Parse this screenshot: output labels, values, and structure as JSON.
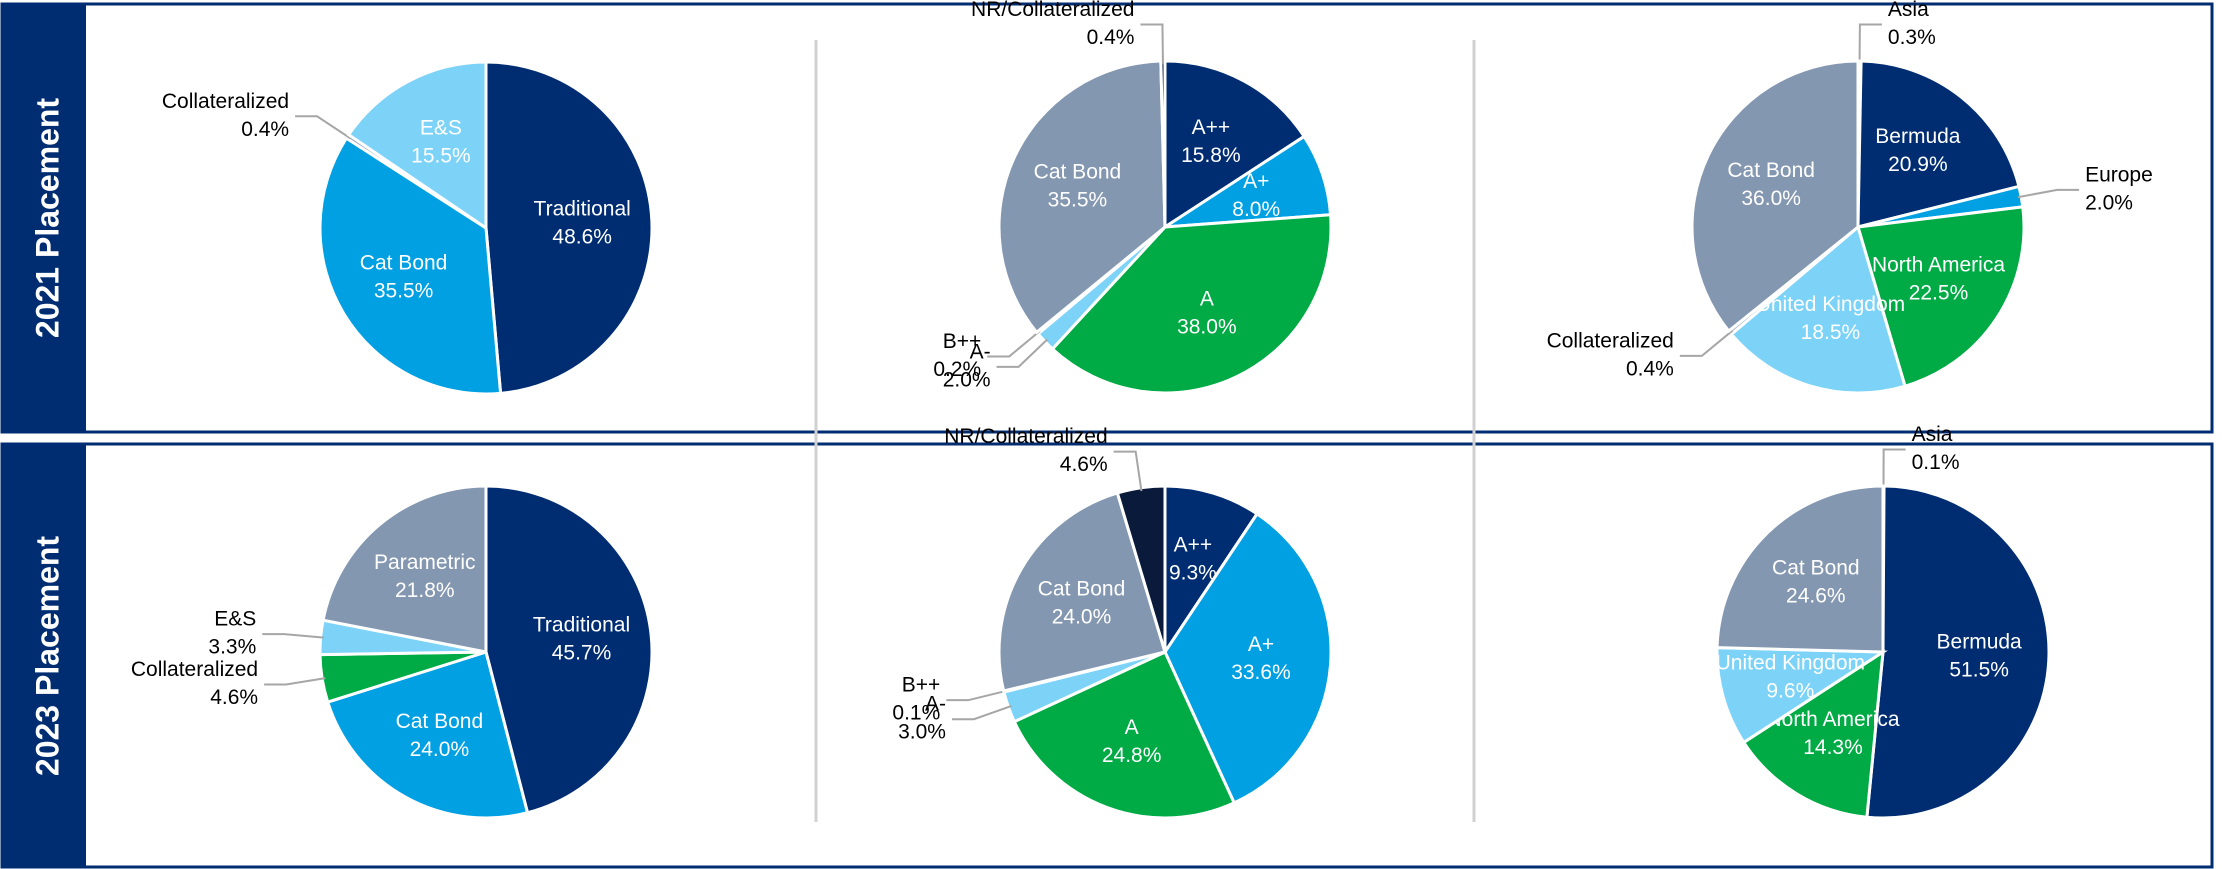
{
  "row_labels": [
    "2021 Placement",
    "2023 Placement"
  ],
  "chart_data": [
    {
      "type": "pie",
      "categories": [
        "Traditional",
        "Cat Bond",
        "Collateralized",
        "E&S"
      ],
      "values": [
        48.6,
        35.5,
        0.4,
        15.5
      ],
      "value_labels": [
        "48.6%",
        "35.5%",
        "0.4%",
        "15.5%"
      ],
      "colors": [
        "#002d72",
        "#00a0e3",
        "#8497b0",
        "#7dd3f7"
      ]
    },
    {
      "type": "pie",
      "categories": [
        "A++",
        "A+",
        "A",
        "A-",
        "B++",
        "Cat Bond",
        "NR/Collateralized"
      ],
      "values": [
        15.8,
        8.0,
        38.0,
        2.0,
        0.2,
        35.5,
        0.4
      ],
      "value_labels": [
        "15.8%",
        "8.0%",
        "38.0%",
        "2.0%",
        "0.2%",
        "35.5%",
        "0.4%"
      ],
      "colors": [
        "#002d72",
        "#00a0e3",
        "#00aa45",
        "#7dd3f7",
        "#b8d9ef",
        "#8497b0",
        "#0a1a3a"
      ]
    },
    {
      "type": "pie",
      "categories": [
        "Asia",
        "Bermuda",
        "Europe",
        "North America",
        "United Kingdom",
        "Collateralized",
        "Cat Bond"
      ],
      "values": [
        0.3,
        20.9,
        2.0,
        22.5,
        18.5,
        0.4,
        36.0
      ],
      "value_labels": [
        "0.3%",
        "20.9%",
        "2.0%",
        "22.5%",
        "18.5%",
        "0.4%",
        "36.0%"
      ],
      "colors": [
        "#0a1a3a",
        "#002d72",
        "#00a0e3",
        "#00aa45",
        "#7dd3f7",
        "#b0b8c8",
        "#8497b0"
      ]
    },
    {
      "type": "pie",
      "categories": [
        "Traditional",
        "Cat Bond",
        "Collateralized",
        "E&S",
        "Parametric"
      ],
      "values": [
        45.7,
        24.0,
        4.6,
        3.3,
        21.8
      ],
      "value_labels": [
        "45.7%",
        "24.0%",
        "4.6%",
        "3.3%",
        "21.8%"
      ],
      "colors": [
        "#002d72",
        "#00a0e3",
        "#00aa45",
        "#7dd3f7",
        "#8497b0"
      ]
    },
    {
      "type": "pie",
      "categories": [
        "A++",
        "A+",
        "A",
        "A-",
        "B++",
        "Cat Bond",
        "NR/Collateralized"
      ],
      "values": [
        9.3,
        33.6,
        24.8,
        3.0,
        0.1,
        24.0,
        4.6
      ],
      "value_labels": [
        "9.3%",
        "33.6%",
        "24.8%",
        "3.0%",
        "0.1%",
        "24.0%",
        "4.6%"
      ],
      "colors": [
        "#002d72",
        "#00a0e3",
        "#00aa45",
        "#7dd3f7",
        "#b8d9ef",
        "#8497b0",
        "#0a1a3a"
      ]
    },
    {
      "type": "pie",
      "categories": [
        "Asia",
        "Bermuda",
        "North America",
        "United Kingdom",
        "Cat Bond"
      ],
      "values": [
        0.1,
        51.5,
        14.3,
        9.6,
        24.6
      ],
      "value_labels": [
        "0.1%",
        "51.5%",
        "14.3%",
        "9.6%",
        "24.6%"
      ],
      "colors": [
        "#0a1a3a",
        "#002d72",
        "#00aa45",
        "#7dd3f7",
        "#8497b0"
      ]
    }
  ]
}
